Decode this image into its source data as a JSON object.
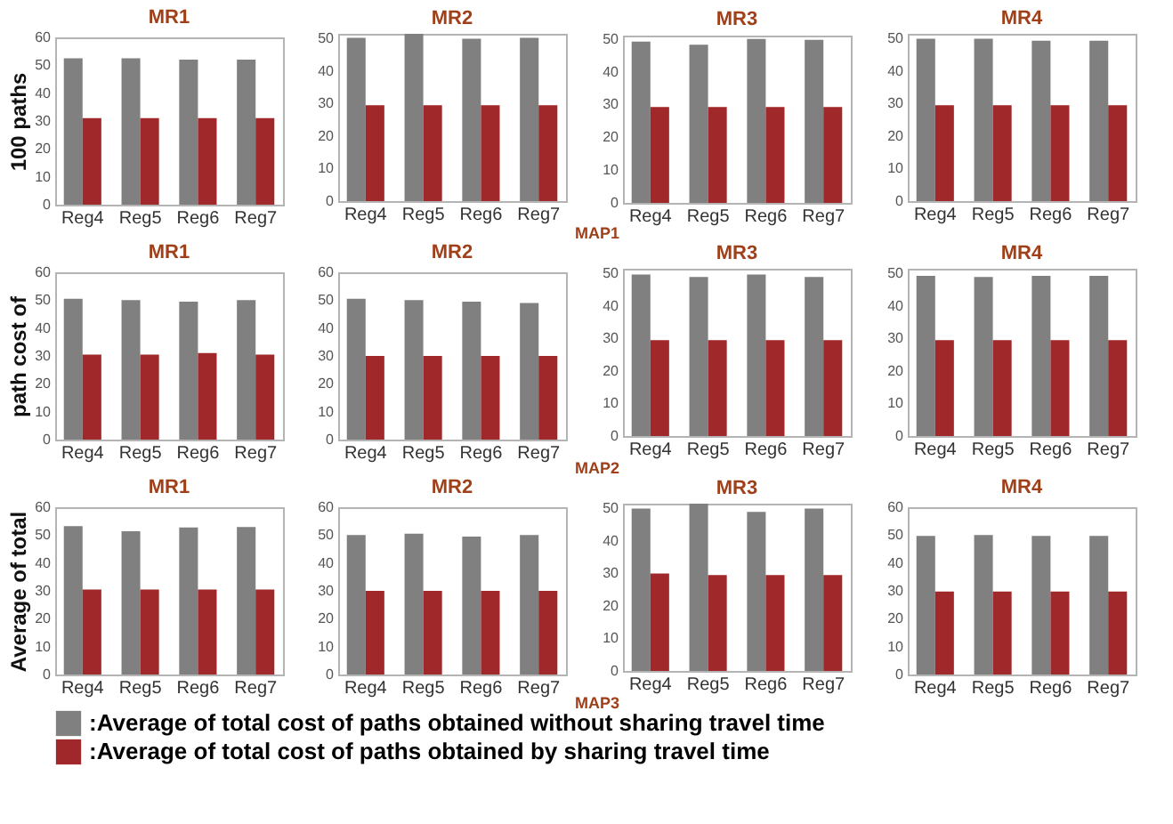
{
  "chart_data": [
    {
      "type": "bar",
      "title": "MR1",
      "ylabel": "100 paths",
      "categories": [
        "Reg4",
        "Reg5",
        "Reg6",
        "Reg7"
      ],
      "ylim": [
        0,
        60
      ],
      "yticks": [
        0,
        10,
        20,
        30,
        40,
        50,
        60
      ],
      "series": [
        {
          "color": "#808080",
          "values": [
            52.5,
            52.5,
            52,
            52
          ]
        },
        {
          "color": "#a0282a",
          "values": [
            31,
            31,
            31,
            31
          ]
        }
      ]
    },
    {
      "type": "bar",
      "title": "MR2",
      "categories": [
        "Reg4",
        "Reg5",
        "Reg6",
        "Reg7"
      ],
      "ylim": [
        0,
        51.5
      ],
      "yticks": [
        0,
        10,
        20,
        30,
        40,
        50
      ],
      "annotations": [
        "MAP1"
      ],
      "series": [
        {
          "color": "#808080",
          "values": [
            50.3,
            51.5,
            50,
            50.3
          ]
        },
        {
          "color": "#a0282a",
          "values": [
            29.5,
            29.5,
            29.5,
            29.5
          ]
        }
      ]
    },
    {
      "type": "bar",
      "title": "MR3",
      "categories": [
        "Reg4",
        "Reg5",
        "Reg6",
        "Reg7"
      ],
      "ylim": [
        0,
        51
      ],
      "yticks": [
        0,
        10,
        20,
        30,
        40,
        50
      ],
      "series": [
        {
          "color": "#808080",
          "values": [
            49.2,
            48.2,
            50,
            49.7
          ]
        },
        {
          "color": "#a0282a",
          "values": [
            29.2,
            29.2,
            29.2,
            29.2
          ]
        }
      ]
    },
    {
      "type": "bar",
      "title": "MR4",
      "categories": [
        "Reg4",
        "Reg5",
        "Reg6",
        "Reg7"
      ],
      "ylim": [
        0,
        51.5
      ],
      "yticks": [
        0,
        10,
        20,
        30,
        40,
        50
      ],
      "series": [
        {
          "color": "#808080",
          "values": [
            50,
            50,
            49.4,
            49.4
          ]
        },
        {
          "color": "#a0282a",
          "values": [
            29.5,
            29.5,
            29.5,
            29.5
          ]
        }
      ]
    },
    {
      "type": "bar",
      "title": "MR1",
      "ylabel": "path cost of",
      "categories": [
        "Reg4",
        "Reg5",
        "Reg6",
        "Reg7"
      ],
      "ylim": [
        0,
        60
      ],
      "yticks": [
        0,
        10,
        20,
        30,
        40,
        50,
        60
      ],
      "series": [
        {
          "color": "#808080",
          "values": [
            50.5,
            50,
            49.5,
            50
          ]
        },
        {
          "color": "#a0282a",
          "values": [
            30.5,
            30.5,
            31,
            30.5
          ]
        }
      ]
    },
    {
      "type": "bar",
      "title": "MR2",
      "categories": [
        "Reg4",
        "Reg5",
        "Reg6",
        "Reg7"
      ],
      "ylim": [
        0,
        60
      ],
      "yticks": [
        0,
        10,
        20,
        30,
        40,
        50,
        60
      ],
      "annotations": [
        "MAP2"
      ],
      "series": [
        {
          "color": "#808080",
          "values": [
            50.5,
            50,
            49.5,
            49
          ]
        },
        {
          "color": "#a0282a",
          "values": [
            30,
            30,
            30,
            30
          ]
        }
      ]
    },
    {
      "type": "bar",
      "title": "MR3",
      "categories": [
        "Reg4",
        "Reg5",
        "Reg6",
        "Reg7"
      ],
      "ylim": [
        0,
        51.5
      ],
      "yticks": [
        0,
        10,
        20,
        30,
        40,
        50
      ],
      "series": [
        {
          "color": "#808080",
          "values": [
            49.7,
            49,
            49.7,
            49
          ]
        },
        {
          "color": "#a0282a",
          "values": [
            29.5,
            29.5,
            29.5,
            29.5
          ]
        }
      ]
    },
    {
      "type": "bar",
      "title": "MR4",
      "categories": [
        "Reg4",
        "Reg5",
        "Reg6",
        "Reg7"
      ],
      "ylim": [
        0,
        51.5
      ],
      "yticks": [
        0,
        10,
        20,
        30,
        40,
        50
      ],
      "series": [
        {
          "color": "#808080",
          "values": [
            49.3,
            49,
            49.3,
            49.3
          ]
        },
        {
          "color": "#a0282a",
          "values": [
            29.5,
            29.5,
            29.5,
            29.5
          ]
        }
      ]
    },
    {
      "type": "bar",
      "title": "MR1",
      "ylabel": "Average of total",
      "categories": [
        "Reg4",
        "Reg5",
        "Reg6",
        "Reg7"
      ],
      "ylim": [
        0,
        60
      ],
      "yticks": [
        0,
        10,
        20,
        30,
        40,
        50,
        60
      ],
      "legend": "bottom",
      "series": [
        {
          "name": ":Average of total cost of paths obtained without sharing travel time",
          "color": "#808080",
          "values": [
            53.2,
            51.4,
            52.7,
            52.9
          ]
        },
        {
          "name": ":Average of total cost of paths obtained by sharing travel time",
          "color": "#a0282a",
          "values": [
            30.5,
            30.5,
            30.5,
            30.5
          ]
        }
      ]
    },
    {
      "type": "bar",
      "title": "MR2",
      "categories": [
        "Reg4",
        "Reg5",
        "Reg6",
        "Reg7"
      ],
      "ylim": [
        0,
        60
      ],
      "yticks": [
        0,
        10,
        20,
        30,
        40,
        50,
        60
      ],
      "annotations": [
        "MAP3"
      ],
      "series": [
        {
          "color": "#808080",
          "values": [
            50,
            50.5,
            49.5,
            50
          ]
        },
        {
          "color": "#a0282a",
          "values": [
            30,
            30,
            30,
            30
          ]
        }
      ]
    },
    {
      "type": "bar",
      "title": "MR3",
      "categories": [
        "Reg4",
        "Reg5",
        "Reg6",
        "Reg7"
      ],
      "ylim": [
        0,
        51.5
      ],
      "yticks": [
        0,
        10,
        20,
        30,
        40,
        50
      ],
      "series": [
        {
          "color": "#808080",
          "values": [
            50,
            51.5,
            49,
            50
          ]
        },
        {
          "color": "#a0282a",
          "values": [
            30,
            29.5,
            29.5,
            29.5
          ]
        }
      ]
    },
    {
      "type": "bar",
      "title": "MR4",
      "categories": [
        "Reg4",
        "Reg5",
        "Reg6",
        "Reg7"
      ],
      "ylim": [
        0,
        60
      ],
      "yticks": [
        0,
        10,
        20,
        30,
        40,
        50,
        60
      ],
      "series": [
        {
          "color": "#808080",
          "values": [
            49.7,
            50,
            49.7,
            49.7
          ]
        },
        {
          "color": "#a0282a",
          "values": [
            29.8,
            29.8,
            29.8,
            29.8
          ]
        }
      ]
    }
  ]
}
